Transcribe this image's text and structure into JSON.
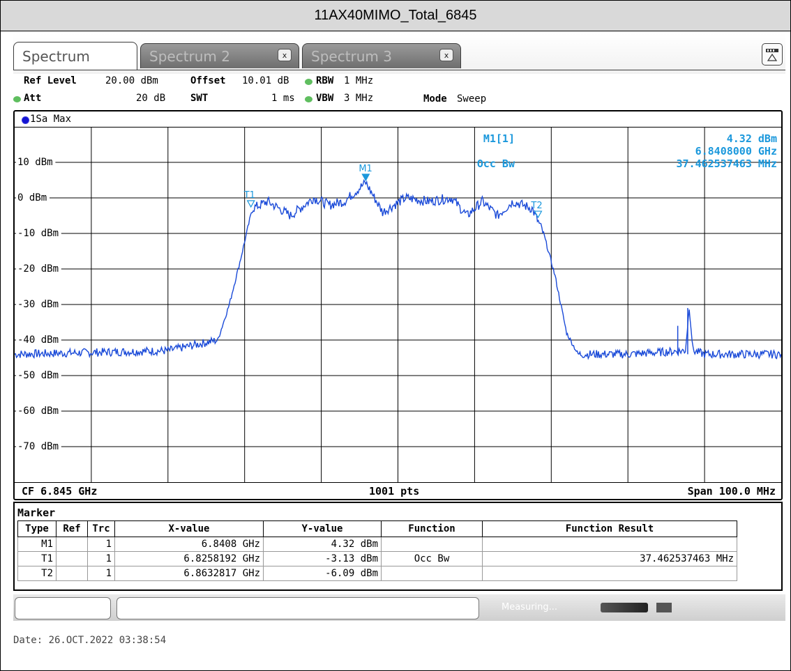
{
  "window": {
    "title": "11AX40MIMO_Total_6845"
  },
  "tabs": [
    {
      "label": "Spectrum",
      "active": true
    },
    {
      "label": "Spectrum 2",
      "close": "x"
    },
    {
      "label": "Spectrum 3",
      "close": "x"
    }
  ],
  "settings": {
    "ref_level_label": "Ref Level",
    "ref_level": "20.00 dBm",
    "offset_label": "Offset",
    "offset": "10.01 dB",
    "rbw_label": "RBW",
    "rbw": "1 MHz",
    "att_label": "Att",
    "att": "20 dB",
    "swt_label": "SWT",
    "swt": "1 ms",
    "vbw_label": "VBW",
    "vbw": "3 MHz",
    "mode_label": "Mode",
    "mode": "Sweep"
  },
  "trace_label": "1Sa Max",
  "readout": {
    "marker": "M1[1]",
    "marker_value": "4.32 dBm",
    "marker_freq": "6.8408000 GHz",
    "function": "Occ Bw",
    "function_value": "37.462537463 MHz"
  },
  "footer": {
    "cf": "CF 6.845 GHz",
    "pts": "1001 pts",
    "span": "Span 100.0 MHz"
  },
  "marker_table": {
    "title": "Marker",
    "headers": [
      "Type",
      "Ref",
      "Trc",
      "X-value",
      "Y-value",
      "Function",
      "Function Result"
    ],
    "rows": [
      [
        "M1",
        "",
        "1",
        "6.8408 GHz",
        "4.32 dBm",
        "",
        ""
      ],
      [
        "T1",
        "",
        "1",
        "6.8258192 GHz",
        "-3.13 dBm",
        "Occ Bw",
        "37.462537463 MHz"
      ],
      [
        "T2",
        "",
        "1",
        "6.8632817 GHz",
        "-6.09 dBm",
        "",
        ""
      ]
    ]
  },
  "status": {
    "text": "Measuring..."
  },
  "date": "Date: 26.OCT.2022  03:38:54",
  "chart_data": {
    "type": "line",
    "x_range_ghz": [
      6.795,
      6.895
    ],
    "ylim": [
      -80,
      20
    ],
    "yticks": [
      10,
      0,
      -10,
      -20,
      -30,
      -40,
      -50,
      -60,
      -70
    ],
    "ytick_labels": [
      "10 dBm",
      "0 dBm",
      "-10 dBm",
      "-20 dBm",
      "-30 dBm",
      "-40 dBm",
      "-50 dBm",
      "-60 dBm",
      "-70 dBm"
    ],
    "grid": true,
    "series": [
      {
        "x": [
          6.795,
          6.805,
          6.815,
          6.8215,
          6.823,
          6.8245,
          6.826,
          6.828,
          6.831,
          6.834,
          6.836,
          6.838,
          6.8408,
          6.843,
          6.846,
          6.849,
          6.852,
          6.854,
          6.856,
          6.858,
          6.86,
          6.8625,
          6.864,
          6.8655,
          6.867,
          6.8685,
          6.875,
          6.8825,
          6.883,
          6.8835,
          6.885,
          6.895
        ],
        "y": [
          -44,
          -43.5,
          -43,
          -40,
          -30,
          -17,
          -3,
          -1,
          -5,
          0,
          -2,
          -1,
          4.3,
          -4,
          0,
          -1,
          0,
          -5,
          -1,
          -5,
          -1,
          -3,
          -10,
          -22,
          -38,
          -44,
          -44,
          -43,
          -31,
          -43,
          -44,
          -44
        ]
      }
    ],
    "markers": [
      {
        "name": "M1",
        "x": 6.8408,
        "y": 4.32
      },
      {
        "name": "T1",
        "x": 6.8258192,
        "y": -3.13
      },
      {
        "name": "T2",
        "x": 6.8632817,
        "y": -6.09
      }
    ],
    "spurs": [
      {
        "x": 6.8815,
        "y": -36
      },
      {
        "x": 6.8828,
        "y": -31
      }
    ]
  },
  "colors": {
    "trace": "#1a4ad8",
    "readout": "#1b98dc",
    "marker": "#1b98dc"
  }
}
